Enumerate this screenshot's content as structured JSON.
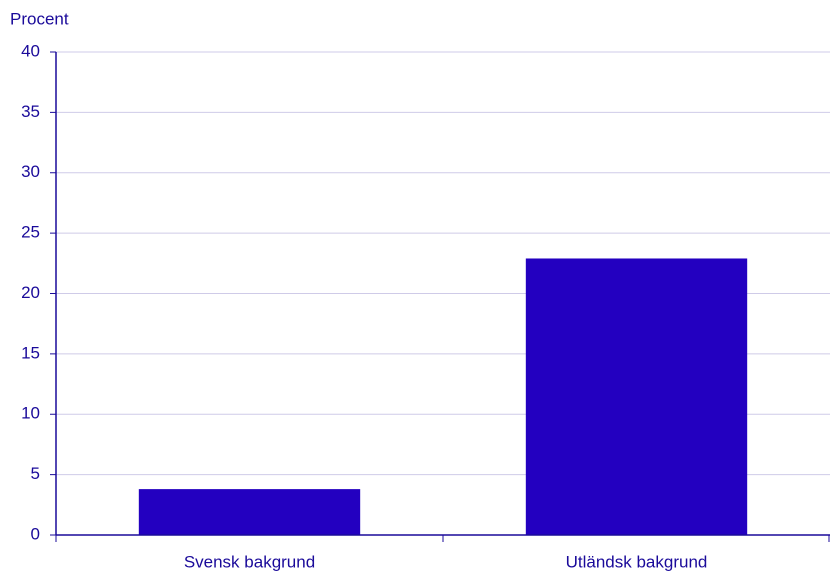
{
  "chart_data": {
    "type": "bar",
    "y_label": "Procent",
    "categories": [
      "Svensk bakgrund",
      "Utländsk bakgrund"
    ],
    "values": [
      3.8,
      22.9
    ],
    "color": "#2300c0",
    "ylim": [
      0,
      40
    ],
    "yticks": [
      0,
      5,
      10,
      15,
      20,
      25,
      30,
      35,
      40
    ],
    "grid": true
  }
}
